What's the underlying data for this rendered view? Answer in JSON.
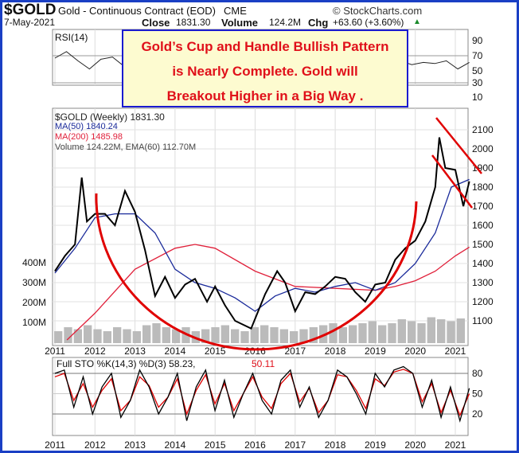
{
  "header": {
    "symbol": "$GOLD",
    "name": "Gold - Continuous Contract (EOD)",
    "exchange": "CME",
    "brand": "© StockCharts.com",
    "date": "7-May-2021",
    "close_label": "Close",
    "close": "1831.30",
    "volume_label": "Volume",
    "volume": "124.2M",
    "chg_label": "Chg",
    "chg": "+63.60 (+3.60%)",
    "chg_arrow": "▲"
  },
  "callout": {
    "line1": "Gold’s Cup and Handle Bullish Pattern",
    "line2": "is Nearly Complete. Gold will",
    "line3": "Breakout Higher in a Big Way ."
  },
  "legend": {
    "rsi": "RSI(14)",
    "price": "$GOLD (Weekly) 1831.30",
    "ma50": "MA(50) 1840.24",
    "ma200": "MA(200) 1485.98",
    "volume": "Volume 124.22M, EMA(60) 112.70M",
    "sto": "Full STO %K(14,3) %D(3) 58.23,",
    "sto_d": "50.11"
  },
  "colors": {
    "border": "#1a3fc4",
    "ma50": "#1a2a9a",
    "ma200": "#e0203a",
    "cup": "#e00000",
    "price": "#000000"
  },
  "chart_data": {
    "type": "line",
    "x_ticks": [
      "2011",
      "2012",
      "2013",
      "2014",
      "2015",
      "2016",
      "2017",
      "2018",
      "2019",
      "2020",
      "2021"
    ],
    "price_axis": {
      "ticks": [
        2100,
        2000,
        1900,
        1800,
        1700,
        1600,
        1500,
        1400,
        1300,
        1200,
        1100
      ],
      "range": [
        1000,
        2150
      ]
    },
    "volume_axis": {
      "ticks": [
        "400M",
        "300M",
        "200M",
        "100M"
      ]
    },
    "rsi_axis": {
      "ticks": [
        90,
        70,
        50,
        30,
        10
      ]
    },
    "sto_axis": {
      "ticks": [
        80,
        50,
        20
      ]
    },
    "price": {
      "x": [
        2011.0,
        2011.25,
        2011.5,
        2011.67,
        2011.8,
        2012.0,
        2012.25,
        2012.5,
        2012.75,
        2013.0,
        2013.25,
        2013.5,
        2013.75,
        2014.0,
        2014.25,
        2014.5,
        2014.8,
        2015.0,
        2015.25,
        2015.5,
        2015.9,
        2016.25,
        2016.55,
        2016.75,
        2017.0,
        2017.25,
        2017.5,
        2017.75,
        2018.0,
        2018.25,
        2018.5,
        2018.75,
        2019.0,
        2019.25,
        2019.5,
        2019.75,
        2020.0,
        2020.25,
        2020.5,
        2020.6,
        2020.75,
        2021.0,
        2021.2,
        2021.35
      ],
      "y": [
        1360,
        1440,
        1500,
        1850,
        1620,
        1660,
        1660,
        1600,
        1780,
        1670,
        1470,
        1230,
        1330,
        1220,
        1290,
        1320,
        1200,
        1280,
        1180,
        1100,
        1060,
        1240,
        1360,
        1300,
        1150,
        1250,
        1240,
        1280,
        1330,
        1320,
        1250,
        1200,
        1290,
        1300,
        1420,
        1480,
        1520,
        1620,
        1800,
        2060,
        1900,
        1890,
        1700,
        1830
      ]
    },
    "ma50": {
      "x": [
        2011.0,
        2011.5,
        2012.0,
        2012.5,
        2013.0,
        2013.5,
        2014.0,
        2014.5,
        2015.0,
        2015.5,
        2016.0,
        2016.5,
        2017.0,
        2017.5,
        2018.0,
        2018.5,
        2019.0,
        2019.5,
        2020.0,
        2020.5,
        2020.9,
        2021.35
      ],
      "y": [
        1350,
        1480,
        1640,
        1660,
        1660,
        1560,
        1370,
        1300,
        1270,
        1220,
        1150,
        1230,
        1270,
        1250,
        1280,
        1300,
        1260,
        1300,
        1400,
        1560,
        1800,
        1840
      ]
    },
    "ma200": {
      "x": [
        2011.3,
        2012.0,
        2013.0,
        2014.0,
        2014.5,
        2015.0,
        2016.0,
        2017.0,
        2018.0,
        2019.0,
        2019.5,
        2020.0,
        2020.5,
        2021.0,
        2021.35
      ],
      "y": [
        1000,
        1140,
        1370,
        1480,
        1500,
        1480,
        1360,
        1280,
        1270,
        1260,
        1280,
        1310,
        1360,
        1440,
        1486
      ]
    },
    "volume_M": [
      60,
      80,
      70,
      90,
      70,
      60,
      80,
      70,
      60,
      90,
      100,
      80,
      70,
      80,
      60,
      70,
      80,
      90,
      70,
      60,
      80,
      90,
      80,
      70,
      60,
      70,
      80,
      90,
      100,
      80,
      90,
      100,
      110,
      90,
      100,
      120,
      110,
      100,
      130,
      120,
      110,
      124
    ],
    "rsi": [
      60,
      72,
      55,
      40,
      58,
      62,
      45,
      52,
      35,
      48,
      55,
      50,
      45,
      60,
      40,
      48,
      55,
      52,
      60,
      50,
      55,
      65,
      45,
      52,
      58,
      50,
      60,
      68,
      72,
      62,
      55,
      48,
      52,
      50,
      55,
      40,
      52
    ],
    "sto_k": [
      80,
      85,
      30,
      75,
      20,
      60,
      80,
      15,
      40,
      85,
      60,
      20,
      45,
      80,
      10,
      60,
      85,
      25,
      70,
      15,
      50,
      80,
      40,
      20,
      70,
      85,
      30,
      60,
      15,
      40,
      85,
      75,
      50,
      20,
      80,
      60,
      85,
      90,
      80,
      30,
      70,
      15,
      60,
      10,
      58
    ],
    "sto_d": [
      75,
      80,
      40,
      65,
      30,
      55,
      72,
      25,
      40,
      75,
      62,
      30,
      45,
      72,
      20,
      55,
      78,
      35,
      65,
      25,
      50,
      75,
      45,
      28,
      65,
      80,
      38,
      58,
      22,
      40,
      78,
      75,
      55,
      28,
      72,
      62,
      82,
      86,
      80,
      38,
      65,
      22,
      55,
      18,
      50
    ]
  }
}
